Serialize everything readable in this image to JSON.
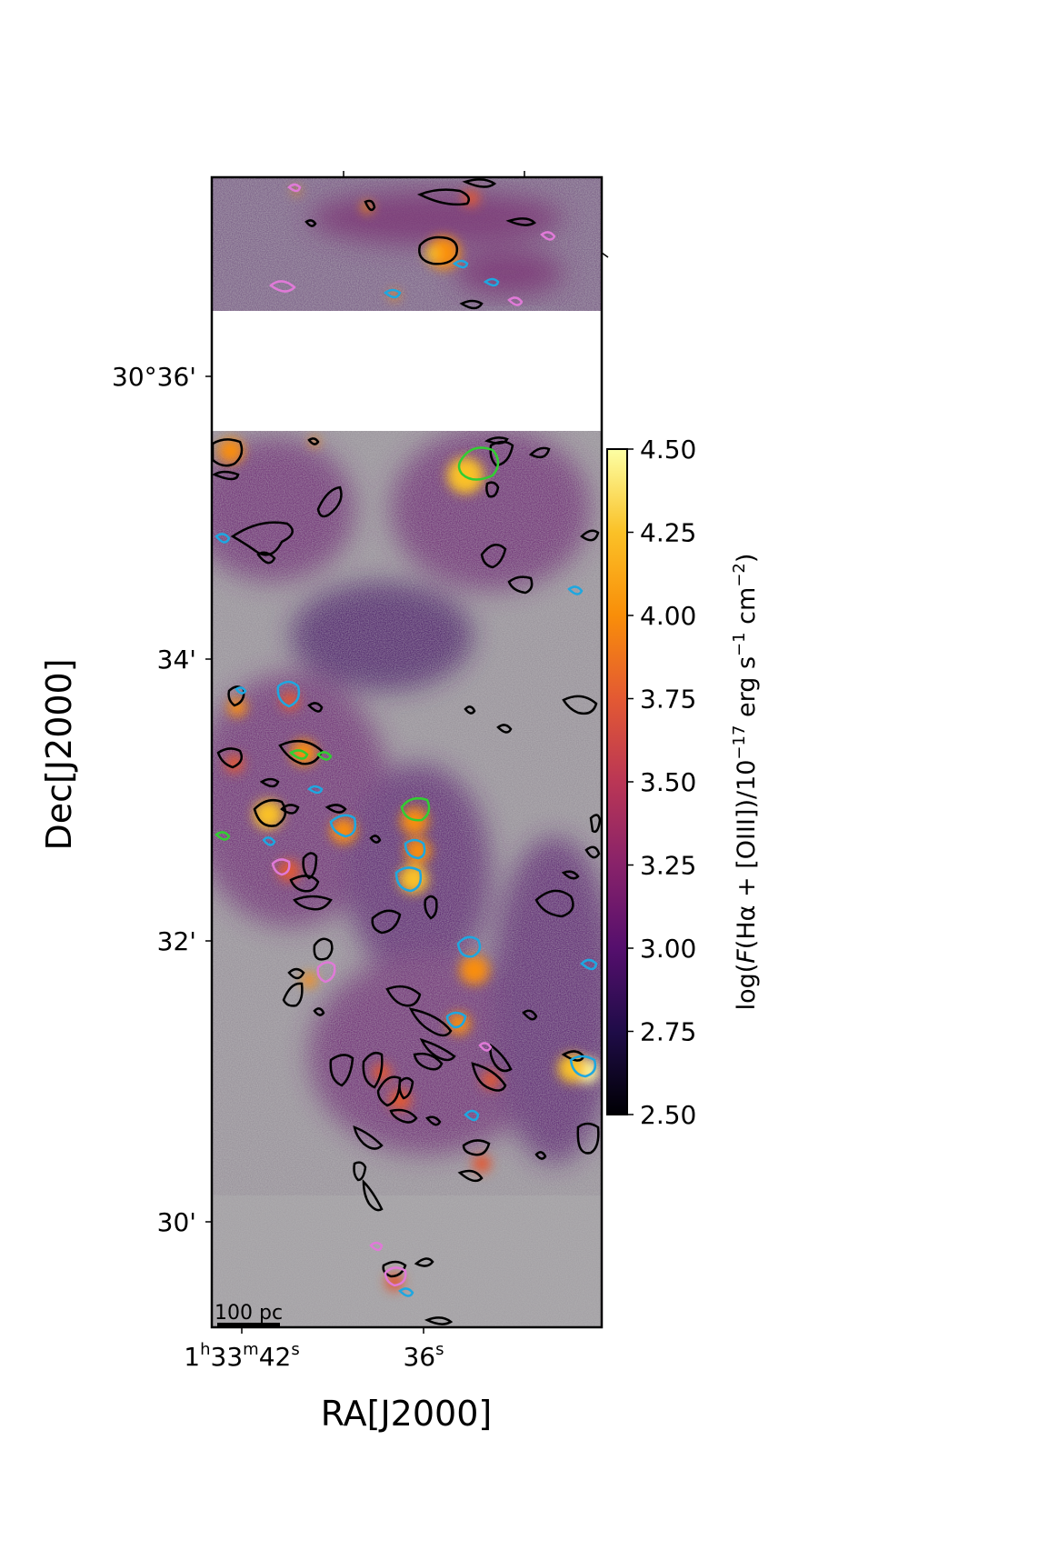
{
  "figure": {
    "x_axis_label": "RA[J2000]",
    "y_axis_label": "Dec[J2000]",
    "x_ticks": [
      {
        "label_parts": [
          "1",
          "h",
          "33",
          "m",
          "42",
          "s"
        ]
      },
      {
        "label_parts": [
          "",
          "",
          "",
          "",
          "36",
          "s"
        ]
      }
    ],
    "y_ticks": [
      "30°36'",
      "34'",
      "32'",
      "30'"
    ],
    "scale_bar_label": "100 pc",
    "colorbar": {
      "label_parts": [
        "log(",
        "F",
        "(Hα + [OIII])/10",
        "−17",
        " erg s",
        "−1",
        " cm",
        "−2",
        ")"
      ],
      "range": [
        2.5,
        4.5
      ],
      "ticks": [
        "4.50",
        "4.25",
        "4.00",
        "3.75",
        "3.50",
        "3.25",
        "3.00",
        "2.75",
        "2.50"
      ],
      "colormap": [
        "#000004",
        "#1f0c48",
        "#550f6d",
        "#88226a",
        "#ba3655",
        "#e35933",
        "#f98e09",
        "#fac127",
        "#fcffa4"
      ]
    },
    "contour_colors": {
      "black": "#000000",
      "blue": "#1ea7e0",
      "green": "#32cd32",
      "pink": "#e07ad8"
    },
    "background_noise_color": "#a9a9a9"
  }
}
